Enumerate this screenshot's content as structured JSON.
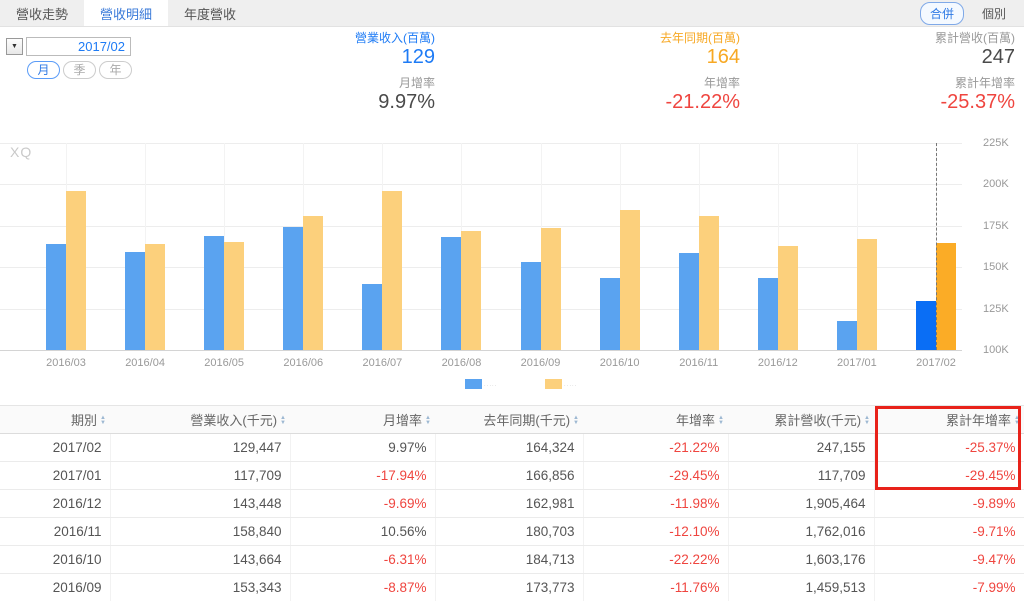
{
  "tabs": {
    "items": [
      {
        "label": "營收走勢",
        "active": false
      },
      {
        "label": "營收明細",
        "active": true
      },
      {
        "label": "年度營收",
        "active": false
      }
    ]
  },
  "view_toggle": {
    "merged": "合併",
    "individual": "個別"
  },
  "period": {
    "value": "2017/02",
    "modes": [
      {
        "label": "月",
        "active": true
      },
      {
        "label": "季",
        "active": false
      },
      {
        "label": "年",
        "active": false
      }
    ]
  },
  "metrics": {
    "revenue_label": "營業收入(百萬)",
    "revenue_value": "129",
    "mom_label": "月增率",
    "mom_value": "9.97%",
    "last_year_label": "去年同期(百萬)",
    "last_year_value": "164",
    "yoy_label": "年增率",
    "yoy_value": "-21.22%",
    "cum_revenue_label": "累計營收(百萬)",
    "cum_revenue_value": "247",
    "cum_yoy_label": "累計年增率",
    "cum_yoy_value": "-25.37%"
  },
  "watermark": "XQ",
  "chart_data": {
    "type": "bar",
    "title": "",
    "categories": [
      "2016/03",
      "2016/04",
      "2016/05",
      "2016/06",
      "2016/07",
      "2016/08",
      "2016/09",
      "2016/10",
      "2016/11",
      "2016/12",
      "2017/01",
      "2017/02"
    ],
    "series": [
      {
        "name": "營業收入(千元)",
        "color": "#5aa3f0",
        "highlight_color": "#0a6ef5",
        "values": [
          164000,
          159000,
          169000,
          174000,
          140000,
          168000,
          153343,
          143664,
          158840,
          143448,
          117709,
          129447
        ]
      },
      {
        "name": "去年同期(千元)",
        "color": "#fcd07c",
        "highlight_color": "#fbac26",
        "values": [
          196000,
          164000,
          165000,
          181000,
          196000,
          172000,
          173773,
          184713,
          180703,
          162981,
          166856,
          164324
        ]
      }
    ],
    "highlight_index": 11,
    "ylim": [
      100000,
      225000
    ],
    "ytick_labels": [
      "225K",
      "200K",
      "175K",
      "150K",
      "125K",
      "100K"
    ],
    "grid": true,
    "legend_labels": [
      "·····",
      "·····"
    ],
    "legend_position": "bottom"
  },
  "table": {
    "columns": [
      "期別",
      "營業收入(千元)",
      "月增率",
      "去年同期(千元)",
      "年增率",
      "累計營收(千元)",
      "累計年增率"
    ],
    "rows": [
      [
        "2017/02",
        "129,447",
        "9.97%",
        "164,324",
        "-21.22%",
        "247,155",
        "-25.37%"
      ],
      [
        "2017/01",
        "117,709",
        "-17.94%",
        "166,856",
        "-29.45%",
        "117,709",
        "-29.45%"
      ],
      [
        "2016/12",
        "143,448",
        "-9.69%",
        "162,981",
        "-11.98%",
        "1,905,464",
        "-9.89%"
      ],
      [
        "2016/11",
        "158,840",
        "10.56%",
        "180,703",
        "-12.10%",
        "1,762,016",
        "-9.71%"
      ],
      [
        "2016/10",
        "143,664",
        "-6.31%",
        "184,713",
        "-22.22%",
        "1,603,176",
        "-9.47%"
      ],
      [
        "2016/09",
        "153,343",
        "-8.87%",
        "173,773",
        "-11.76%",
        "1,459,513",
        "-7.99%"
      ]
    ]
  },
  "colors": {
    "accent_blue": "#1e7bf5",
    "accent_orange": "#f7a823",
    "negative_red": "#ef453f",
    "annotation_red": "#e8221a"
  }
}
